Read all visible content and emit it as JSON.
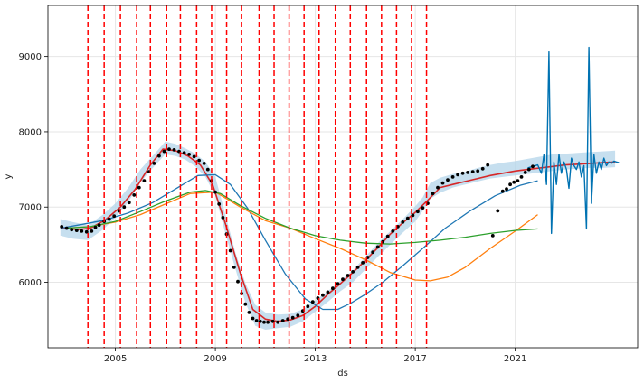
{
  "chart_data": {
    "type": "line",
    "title": "",
    "xlabel": "ds",
    "ylabel": "y",
    "xlim": [
      2002.3,
      2025.9
    ],
    "ylim": [
      5130,
      9680
    ],
    "x_ticks": [
      2005,
      2009,
      2013,
      2017,
      2021
    ],
    "x_tick_labels": [
      "2005",
      "2009",
      "2013",
      "2017",
      "2021"
    ],
    "y_ticks": [
      6000,
      7000,
      8000,
      9000
    ],
    "y_tick_labels": [
      "6000",
      "7000",
      "8000",
      "9000"
    ],
    "grid": true,
    "legend": "none",
    "colors": {
      "observed": "#000000",
      "trend": "#d62728",
      "changepoint": "#ff0000",
      "forecast": "#0072b2",
      "uncertainty": "#b3d4ea",
      "curve_blue": "#1f77b4",
      "curve_orange": "#ff7f0e",
      "curve_green": "#2ca02c"
    },
    "changepoints": [
      2003.9,
      2004.55,
      2005.2,
      2005.85,
      2006.4,
      2007.05,
      2007.6,
      2008.25,
      2008.85,
      2009.45,
      2010.05,
      2010.75,
      2011.35,
      2011.95,
      2012.55,
      2013.15,
      2013.8,
      2014.4,
      2015.05,
      2015.65,
      2016.25,
      2016.85,
      2017.45
    ],
    "uncertainty_band": {
      "x": [
        2002.8,
        2003.3,
        2003.9,
        2004.5,
        2005.0,
        2005.5,
        2006.0,
        2006.6,
        2007.0,
        2007.4,
        2007.8,
        2008.2,
        2008.6,
        2009.0,
        2009.4,
        2009.8,
        2010.2,
        2010.6,
        2011.0,
        2011.5,
        2012.0,
        2012.5,
        2013.0,
        2013.5,
        2014.0,
        2014.5,
        2015.0,
        2015.5,
        2016.0,
        2016.5,
        2017.0,
        2017.3,
        2017.6,
        2018.0,
        2018.5,
        2019.0,
        2019.5,
        2020.0,
        2020.5,
        2021.0,
        2021.5,
        2022.0,
        2022.5,
        2023.0,
        2023.5,
        2024.0,
        2024.5,
        2025.0
      ],
      "upper": [
        6840,
        6800,
        6760,
        6900,
        7050,
        7250,
        7500,
        7720,
        7870,
        7840,
        7780,
        7710,
        7600,
        7400,
        6900,
        6400,
        5990,
        5700,
        5600,
        5570,
        5580,
        5640,
        5760,
        5880,
        6020,
        6160,
        6340,
        6520,
        6680,
        6840,
        7010,
        7130,
        7320,
        7390,
        7440,
        7470,
        7520,
        7560,
        7590,
        7610,
        7640,
        7670,
        7700,
        7710,
        7720,
        7730,
        7740,
        7750
      ],
      "lower": [
        6620,
        6580,
        6560,
        6700,
        6860,
        7060,
        7330,
        7560,
        7700,
        7680,
        7630,
        7540,
        7400,
        7150,
        6650,
        6180,
        5730,
        5420,
        5370,
        5390,
        5410,
        5480,
        5610,
        5740,
        5880,
        6000,
        6170,
        6340,
        6500,
        6660,
        6810,
        6950,
        7110,
        7190,
        7260,
        7300,
        7340,
        7380,
        7400,
        7420,
        7440,
        7460,
        7480,
        7500,
        7510,
        7520,
        7520,
        7530
      ]
    },
    "series": [
      {
        "x": [
          2002.8,
          2003.5,
          2004.0,
          2004.6,
          2005.2,
          2005.8,
          2006.4,
          2006.9,
          2007.4,
          2007.9,
          2008.4,
          2008.9,
          2009.4,
          2010.0,
          2010.5,
          2011.0,
          2011.5,
          2012.0,
          2012.5,
          2013.0,
          2013.5,
          2014.0,
          2014.5,
          2015.0,
          2015.5,
          2016.0,
          2016.5,
          2017.0,
          2017.5,
          2018.0,
          2018.5,
          2019.0,
          2019.5,
          2020.0,
          2020.5,
          2021.0,
          2021.5,
          2022.0,
          2022.5,
          2023.0,
          2023.5,
          2024.0,
          2024.5,
          2025.0
        ],
        "y": [
          6730,
          6700,
          6720,
          6830,
          7000,
          7240,
          7560,
          7770,
          7750,
          7680,
          7560,
          7290,
          6780,
          6120,
          5640,
          5510,
          5480,
          5500,
          5560,
          5680,
          5840,
          5980,
          6130,
          6290,
          6460,
          6640,
          6790,
          6930,
          7090,
          7260,
          7300,
          7340,
          7380,
          7420,
          7450,
          7480,
          7500,
          7520,
          7540,
          7560,
          7570,
          7580,
          7590,
          7600
        ]
      },
      {
        "x": [
          2002.8,
          2003.5,
          2004.5,
          2005.5,
          2006.5,
          2007.5,
          2008.3,
          2009.0,
          2009.6,
          2010.3,
          2011.0,
          2011.8,
          2012.6,
          2013.3,
          2013.9,
          2014.4,
          2015.0,
          2015.7,
          2016.5,
          2017.3,
          2018.2,
          2019.2,
          2020.2,
          2021.2,
          2021.9
        ],
        "y": [
          6720,
          6760,
          6820,
          6920,
          7060,
          7260,
          7420,
          7430,
          7300,
          6980,
          6560,
          6110,
          5780,
          5640,
          5640,
          5720,
          5840,
          6000,
          6220,
          6450,
          6720,
          6950,
          7150,
          7290,
          7350
        ]
      },
      {
        "x": [
          2003.0,
          2004.0,
          2005.0,
          2006.0,
          2007.0,
          2008.0,
          2009.0,
          2010.0,
          2011.0,
          2012.0,
          2013.0,
          2014.0,
          2015.0,
          2016.0,
          2017.0,
          2017.6,
          2018.3,
          2019.0,
          2020.0,
          2021.0,
          2021.9
        ],
        "y": [
          6720,
          6740,
          6800,
          6900,
          7040,
          7180,
          7200,
          7000,
          6820,
          6720,
          6580,
          6450,
          6300,
          6130,
          6030,
          6020,
          6070,
          6200,
          6450,
          6680,
          6900
        ]
      },
      {
        "x": [
          2003.0,
          2004.0,
          2005.0,
          2006.0,
          2007.0,
          2008.0,
          2008.6,
          2009.2,
          2010.0,
          2011.0,
          2012.0,
          2013.0,
          2014.0,
          2015.0,
          2016.0,
          2017.0,
          2018.0,
          2019.0,
          2020.0,
          2021.0,
          2021.9
        ],
        "y": [
          6720,
          6740,
          6810,
          6940,
          7080,
          7200,
          7220,
          7180,
          7020,
          6850,
          6720,
          6620,
          6560,
          6520,
          6510,
          6530,
          6560,
          6600,
          6650,
          6690,
          6710
        ]
      },
      {
        "x": [
          2021.5,
          2021.7,
          2021.9,
          2022.05,
          2022.15,
          2022.25,
          2022.35,
          2022.45,
          2022.55,
          2022.65,
          2022.75,
          2022.85,
          2022.95,
          2023.05,
          2023.15,
          2023.25,
          2023.35,
          2023.45,
          2023.55,
          2023.65,
          2023.75,
          2023.85,
          2023.95,
          2024.05,
          2024.15,
          2024.25,
          2024.35,
          2024.45,
          2024.55,
          2024.65,
          2024.75,
          2024.85,
          2024.95,
          2025.05,
          2025.15
        ],
        "y": [
          7520,
          7540,
          7560,
          7450,
          7700,
          7300,
          9060,
          6650,
          7600,
          7300,
          7700,
          7450,
          7600,
          7500,
          7250,
          7650,
          7550,
          7500,
          7600,
          7400,
          7550,
          6710,
          9120,
          7050,
          7700,
          7450,
          7600,
          7500,
          7650,
          7550,
          7600,
          7580,
          7610,
          7600,
          7590
        ]
      }
    ],
    "observed_points": {
      "x": [
        2002.85,
        2003.05,
        2003.25,
        2003.45,
        2003.65,
        2003.85,
        2004.05,
        2004.2,
        2004.35,
        2004.55,
        2004.75,
        2004.95,
        2005.15,
        2005.35,
        2005.55,
        2005.75,
        2005.95,
        2006.15,
        2006.35,
        2006.55,
        2006.75,
        2006.95,
        2007.15,
        2007.35,
        2007.55,
        2007.75,
        2007.95,
        2008.15,
        2008.35,
        2008.55,
        2008.7,
        2008.85,
        2009.0,
        2009.15,
        2009.3,
        2009.45,
        2009.6,
        2009.75,
        2009.9,
        2010.05,
        2010.2,
        2010.35,
        2010.5,
        2010.65,
        2010.8,
        2010.95,
        2011.1,
        2011.3,
        2011.5,
        2011.7,
        2011.9,
        2012.1,
        2012.3,
        2012.5,
        2012.7,
        2012.9,
        2013.1,
        2013.3,
        2013.5,
        2013.7,
        2013.9,
        2014.1,
        2014.3,
        2014.5,
        2014.7,
        2014.9,
        2015.1,
        2015.3,
        2015.5,
        2015.7,
        2015.9,
        2016.1,
        2016.3,
        2016.5,
        2016.7,
        2016.9,
        2017.1,
        2017.3,
        2017.5,
        2017.7,
        2017.9,
        2018.1,
        2018.3,
        2018.5,
        2018.7,
        2018.9,
        2019.1,
        2019.3,
        2019.5,
        2019.7,
        2019.9,
        2020.1,
        2020.3,
        2020.5,
        2020.65,
        2020.8,
        2020.95,
        2021.1,
        2021.25,
        2021.4,
        2021.55,
        2021.7
      ],
      "y": [
        6740,
        6720,
        6700,
        6690,
        6680,
        6670,
        6680,
        6730,
        6760,
        6810,
        6840,
        6880,
        6950,
        7000,
        7060,
        7160,
        7260,
        7350,
        7470,
        7580,
        7680,
        7740,
        7770,
        7760,
        7740,
        7720,
        7700,
        7670,
        7620,
        7580,
        7500,
        7350,
        7200,
        7040,
        6860,
        6640,
        6420,
        6200,
        6010,
        5850,
        5710,
        5600,
        5520,
        5490,
        5480,
        5470,
        5470,
        5480,
        5470,
        5490,
        5510,
        5530,
        5560,
        5620,
        5680,
        5740,
        5790,
        5830,
        5870,
        5920,
        5980,
        6040,
        6090,
        6140,
        6200,
        6260,
        6330,
        6400,
        6470,
        6540,
        6610,
        6680,
        6740,
        6800,
        6850,
        6890,
        6940,
        6990,
        7050,
        7180,
        7260,
        7320,
        7360,
        7400,
        7430,
        7450,
        7460,
        7470,
        7480,
        7510,
        7560,
        6620,
        6950,
        7210,
        7240,
        7300,
        7330,
        7350,
        7400,
        7460,
        7500,
        7540
      ]
    }
  }
}
